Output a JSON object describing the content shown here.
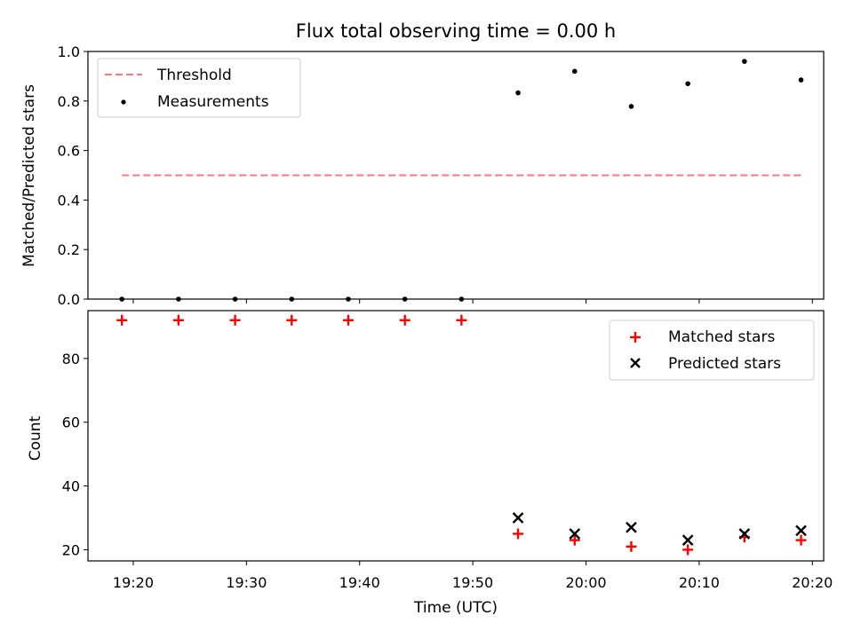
{
  "chart_data": [
    {
      "type": "scatter",
      "title": "Flux total observing time = 0.00 h",
      "ylabel": "Matched/Predicted stars",
      "xlabel": "",
      "xlim": [
        "19:16",
        "20:21"
      ],
      "ylim": [
        0,
        1.0
      ],
      "yticks": [
        0.0,
        0.2,
        0.4,
        0.6,
        0.8,
        1.0
      ],
      "ytick_labels": [
        "0.0",
        "0.2",
        "0.4",
        "0.6",
        "0.8",
        "1.0"
      ],
      "grid": false,
      "legend_position": "upper-left",
      "series": [
        {
          "name": "Threshold",
          "kind": "line",
          "style": "dashed",
          "color": "#ff7777",
          "x": [
            "19:19",
            "20:19"
          ],
          "y": [
            0.5,
            0.5
          ]
        },
        {
          "name": "Measurements",
          "kind": "scatter",
          "marker": "dot",
          "color": "#000000",
          "x": [
            "19:19",
            "19:24",
            "19:29",
            "19:34",
            "19:39",
            "19:44",
            "19:49",
            "19:54",
            "19:59",
            "20:04",
            "20:09",
            "20:14",
            "20:19"
          ],
          "y": [
            0.0,
            0.0,
            0.0,
            0.0,
            0.0,
            0.0,
            0.0,
            0.833,
            0.92,
            0.778,
            0.87,
            0.96,
            0.885
          ]
        }
      ]
    },
    {
      "type": "scatter",
      "title": "",
      "ylabel": "Count",
      "xlabel": "Time (UTC)",
      "xlim": [
        "19:16",
        "20:21"
      ],
      "ylim": [
        16.5,
        95
      ],
      "yticks": [
        20,
        40,
        60,
        80
      ],
      "ytick_labels": [
        "20",
        "40",
        "60",
        "80"
      ],
      "xticks": [
        "19:20",
        "19:30",
        "19:40",
        "19:50",
        "20:00",
        "20:10",
        "20:20"
      ],
      "grid": false,
      "legend_position": "upper-right",
      "series": [
        {
          "name": "Matched stars",
          "kind": "scatter",
          "marker": "plus",
          "color": "#ff0000",
          "x": [
            "19:19",
            "19:24",
            "19:29",
            "19:34",
            "19:39",
            "19:44",
            "19:49",
            "19:54",
            "19:59",
            "20:04",
            "20:09",
            "20:14",
            "20:19"
          ],
          "y": [
            92,
            92,
            92,
            92,
            92,
            92,
            92,
            25,
            23,
            21,
            20,
            24,
            23
          ]
        },
        {
          "name": "Predicted stars",
          "kind": "scatter",
          "marker": "x",
          "color": "#000000",
          "x": [
            "19:54",
            "19:59",
            "20:04",
            "20:09",
            "20:14",
            "20:19"
          ],
          "y": [
            30,
            25,
            27,
            23,
            25,
            26
          ]
        }
      ]
    }
  ]
}
